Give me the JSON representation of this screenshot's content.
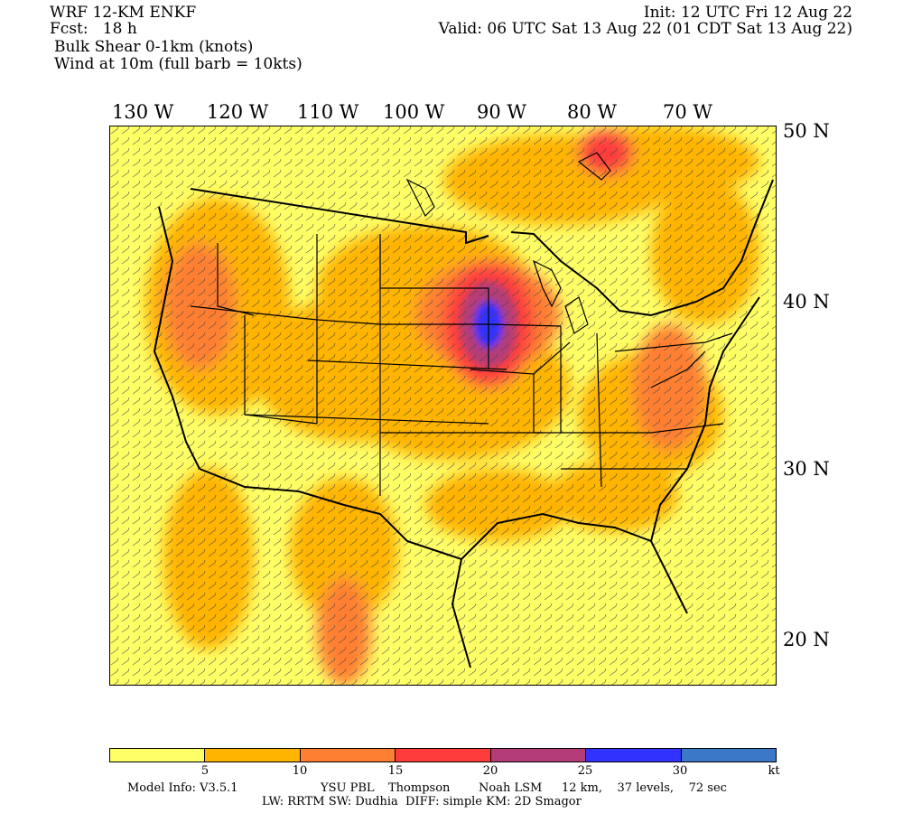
{
  "header": {
    "model": "WRF 12-KM ENKF",
    "fcst": "Fcst:   18 h",
    "field": "Bulk Shear 0-1km (knots)",
    "wind": "Wind at 10m (full barb = 10kts)",
    "init": "Init: 12 UTC Fri 12 Aug 22",
    "valid": "Valid: 06 UTC Sat 13 Aug 22 (01 CDT Sat 13 Aug 22)"
  },
  "longitudes": [
    "130 W",
    "120 W",
    "110 W",
    "100 W",
    "90 W",
    "80 W",
    "70 W"
  ],
  "latitudes": [
    "50 N",
    "40 N",
    "30 N",
    "20 N"
  ],
  "colorbar": {
    "colors": [
      "#ffff66",
      "#ffb400",
      "#ff7f32",
      "#ff3c3c",
      "#b43c78",
      "#3232ff",
      "#3c78c8"
    ],
    "ticks": [
      "5",
      "10",
      "15",
      "20",
      "25",
      "30",
      "kt"
    ]
  },
  "footer": {
    "line1_a": "Model Info: V3.5.1",
    "line1_b": "YSU PBL",
    "line1_c": "Thompson",
    "line1_d": "Noah LSM",
    "line1_e": "12 km,    37 levels,    72 sec",
    "line2": "LW: RRTM SW: Dudhia  DIFF: simple KM: 2D Smagor"
  }
}
